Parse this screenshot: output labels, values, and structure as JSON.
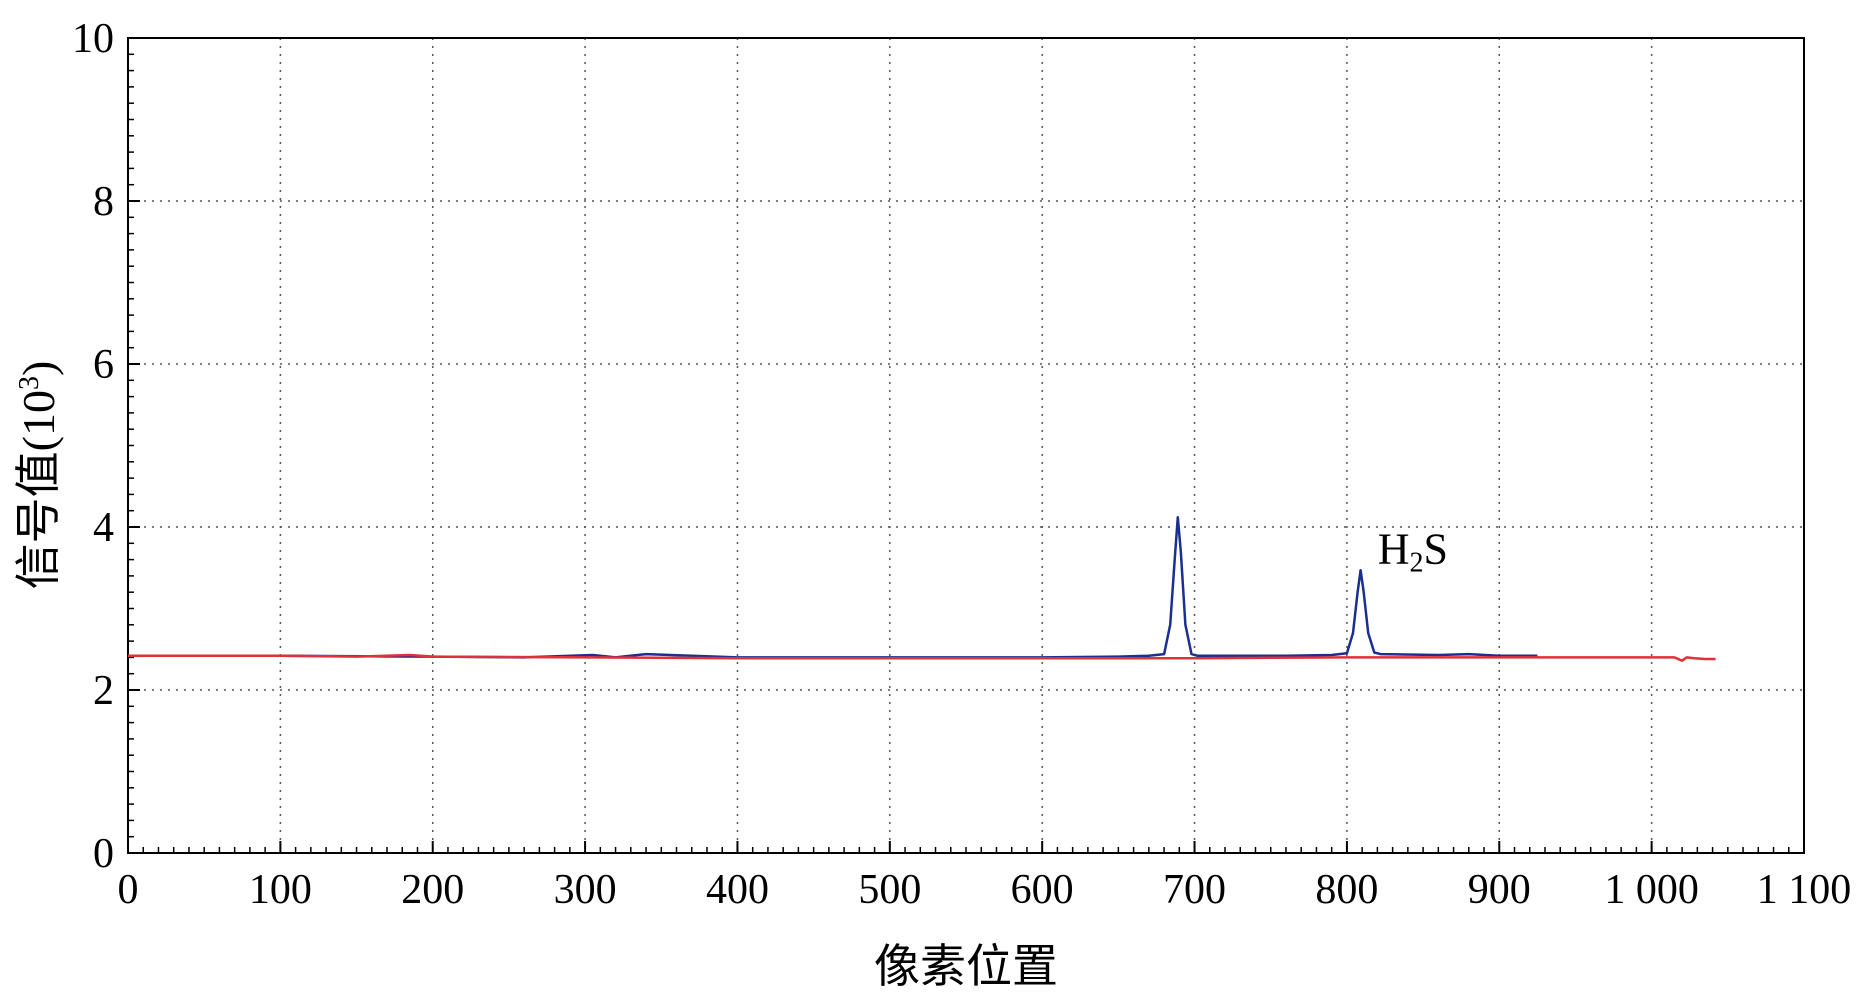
{
  "chart_data": {
    "type": "line",
    "xlabel": "像素位置",
    "ylabel_main": "信号值(10",
    "ylabel_sup": "3",
    "ylabel_close": ")",
    "xlim": [
      0,
      1100
    ],
    "ylim": [
      0,
      10
    ],
    "xticks": [
      0,
      100,
      200,
      300,
      400,
      500,
      600,
      700,
      800,
      900,
      1000,
      1100
    ],
    "xtick_labels": [
      "0",
      "100",
      "200",
      "300",
      "400",
      "500",
      "600",
      "700",
      "800",
      "900",
      "1 000",
      "1 100"
    ],
    "yticks": [
      0,
      2,
      4,
      6,
      8,
      10
    ],
    "ytick_labels": [
      "0",
      "2",
      "4",
      "6",
      "8",
      "10"
    ],
    "grid": true,
    "series": [
      {
        "color": "#1a2f8f",
        "x": [
          0,
          100,
          200,
          260,
          305,
          320,
          340,
          400,
          500,
          600,
          650,
          670,
          680,
          684,
          687,
          689,
          691,
          694,
          698,
          702,
          720,
          760,
          790,
          800,
          804,
          807,
          809,
          811,
          814,
          818,
          822,
          860,
          880,
          900,
          925
        ],
        "y": [
          2.42,
          2.42,
          2.41,
          2.4,
          2.43,
          2.4,
          2.44,
          2.4,
          2.4,
          2.4,
          2.41,
          2.42,
          2.44,
          2.8,
          3.6,
          4.12,
          3.7,
          2.8,
          2.44,
          2.42,
          2.42,
          2.42,
          2.43,
          2.45,
          2.7,
          3.2,
          3.47,
          3.2,
          2.7,
          2.46,
          2.44,
          2.43,
          2.44,
          2.42,
          2.42
        ]
      },
      {
        "color": "#e0303a",
        "x": [
          0,
          50,
          100,
          150,
          185,
          200,
          300,
          400,
          500,
          600,
          700,
          800,
          900,
          1000,
          1015,
          1020,
          1023,
          1028,
          1035,
          1042
        ],
        "y": [
          2.42,
          2.42,
          2.42,
          2.41,
          2.43,
          2.41,
          2.4,
          2.39,
          2.39,
          2.39,
          2.39,
          2.4,
          2.4,
          2.4,
          2.4,
          2.36,
          2.4,
          2.39,
          2.38,
          2.38
        ]
      }
    ],
    "annotations": [
      {
        "text_main": "H",
        "text_sub": "2",
        "text_tail": "S",
        "x": 815,
        "y": 3.55
      }
    ]
  }
}
